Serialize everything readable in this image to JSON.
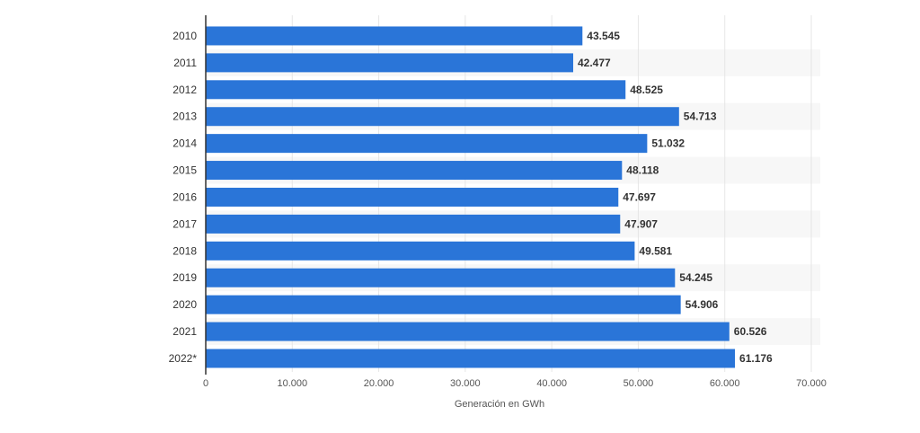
{
  "chart_data": {
    "type": "bar",
    "orientation": "horizontal",
    "categories": [
      "2010",
      "2011",
      "2012",
      "2013",
      "2014",
      "2015",
      "2016",
      "2017",
      "2018",
      "2019",
      "2020",
      "2021",
      "2022*"
    ],
    "values": [
      43545,
      42477,
      48525,
      54713,
      51032,
      48118,
      47697,
      47907,
      49581,
      54245,
      54906,
      60526,
      61176
    ],
    "value_labels": [
      "43.545",
      "42.477",
      "48.525",
      "54.713",
      "51.032",
      "48.118",
      "47.697",
      "47.907",
      "49.581",
      "54.245",
      "54.906",
      "60.526",
      "61.176"
    ],
    "xlabel": "Generación en GWh",
    "ylabel": "",
    "xlim": [
      0,
      70000
    ],
    "ticks": [
      0,
      10000,
      20000,
      30000,
      40000,
      50000,
      60000,
      70000
    ],
    "tick_labels": [
      "0",
      "10.000",
      "20.000",
      "30.000",
      "40.000",
      "50.000",
      "60.000",
      "70.000"
    ],
    "grid": true,
    "bar_color": "#2a75d8"
  }
}
